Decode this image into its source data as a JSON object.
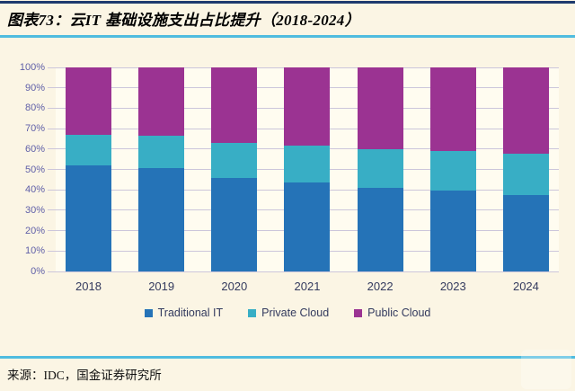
{
  "header": {
    "title": "图表73：云IT 基础设施支出占比提升（2018-2024）"
  },
  "footer": {
    "source": "来源：IDC，国金证券研究所"
  },
  "colors": {
    "traditional_it": "#2573B7",
    "private_cloud": "#38AEC5",
    "public_cloud": "#9B3392",
    "ytick_label": "#5F5FA8",
    "xtick_label": "#333A5E",
    "gridline": "#CCC6DB",
    "top_rule": "#1E3A6E",
    "accent_rule": "#4FBCDF",
    "page_background": "#FBF5E4",
    "plot_background": "#FFFCF0"
  },
  "chart_data": {
    "type": "bar",
    "stacked": true,
    "title": "云IT 基础设施支出占比提升（2018-2024）",
    "categories": [
      "2018",
      "2019",
      "2020",
      "2021",
      "2022",
      "2023",
      "2024"
    ],
    "series": [
      {
        "name": "Traditional IT",
        "color": "#2573B7",
        "values": [
          52,
          50.5,
          46,
          43.5,
          41,
          39.5,
          37.5
        ]
      },
      {
        "name": "Private Cloud",
        "color": "#38AEC5",
        "values": [
          15,
          16,
          17,
          18,
          19,
          19.5,
          20
        ]
      },
      {
        "name": "Public Cloud",
        "color": "#9B3392",
        "values": [
          33,
          33.5,
          37,
          38.5,
          40,
          41,
          42.5
        ]
      }
    ],
    "xlabel": "",
    "ylabel": "",
    "ylim": [
      0,
      100
    ],
    "ytick_step": 10,
    "yticks": [
      "0%",
      "10%",
      "20%",
      "30%",
      "40%",
      "50%",
      "60%",
      "70%",
      "80%",
      "90%",
      "100%"
    ],
    "grid": true,
    "legend_position": "bottom"
  }
}
